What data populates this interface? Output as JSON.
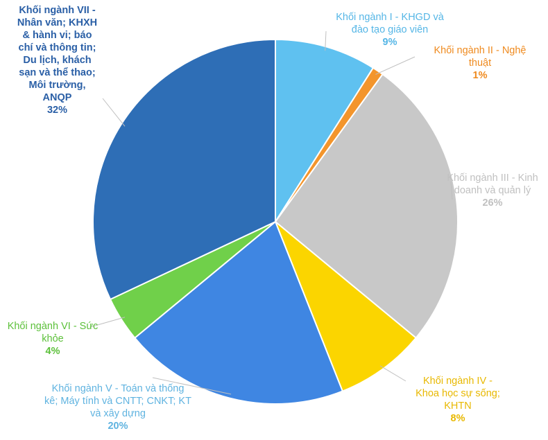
{
  "chart_data": {
    "type": "pie",
    "slices": [
      {
        "name": "Khối ngành I - KHGD và đào tạo giáo viên",
        "label_lines": [
          "Khối ngành I - KHGD và",
          "đào tạo giáo viên"
        ],
        "value": 9,
        "pct_label": "9%",
        "color": "#5fc1f0",
        "label_color": "#55b6e6"
      },
      {
        "name": "Khối ngành II - Nghệ thuật",
        "label_lines": [
          "Khối ngành II - Nghệ",
          "thuật"
        ],
        "value": 1,
        "pct_label": "1%",
        "color": "#f3952c",
        "label_color": "#ef8a1e"
      },
      {
        "name": "Khối ngành III - Kinh doanh và quản lý",
        "label_lines": [
          "Khối ngành III - Kinh",
          "doanh và quản lý"
        ],
        "value": 26,
        "pct_label": "26%",
        "color": "#c8c8c8",
        "label_color": "#c0c0c0"
      },
      {
        "name": "Khối ngành IV - Khoa học sự sống; KHTN",
        "label_lines": [
          "Khối ngành IV -",
          "Khoa học sự sống;",
          "KHTN"
        ],
        "value": 8,
        "pct_label": "8%",
        "color": "#fbd500",
        "label_color": "#e8b800"
      },
      {
        "name": "Khối ngành V - Toán và thống kê; Máy tính và CNTT; CNKT; KT và xây dựng",
        "label_lines": [
          "Khối ngành V - Toán và thống",
          "kê; Máy tính và CNTT; CNKT; KT",
          "và xây dựng"
        ],
        "value": 20,
        "pct_label": "20%",
        "color": "#3f86e2",
        "label_color": "#5fb3e0"
      },
      {
        "name": "Khối ngành VI - Sức khỏe",
        "label_lines": [
          "Khối ngành VI - Sức",
          "khỏe"
        ],
        "value": 4,
        "pct_label": "4%",
        "color": "#70d04a",
        "label_color": "#5cc03a"
      },
      {
        "name": "Khối ngành VII - Nhân văn; KHXH & hành vi; báo chí và thông tin; Du lịch, khách sạn và thể thao; Môi trường, ANQP",
        "label_lines": [
          "Khối ngành VII -",
          "Nhân văn; KHXH",
          "& hành vi; báo",
          "chí và thông tin;",
          "Du lịch, khách",
          "sạn và thể thao;",
          "Môi trường,",
          "ANQP"
        ],
        "value": 32,
        "pct_label": "32%",
        "color": "#2e6eb6",
        "label_color": "#2a5fa6"
      }
    ],
    "start": "12 o'clock",
    "direction": "clockwise",
    "legend": "none",
    "data_labels": "outside with leader lines"
  }
}
